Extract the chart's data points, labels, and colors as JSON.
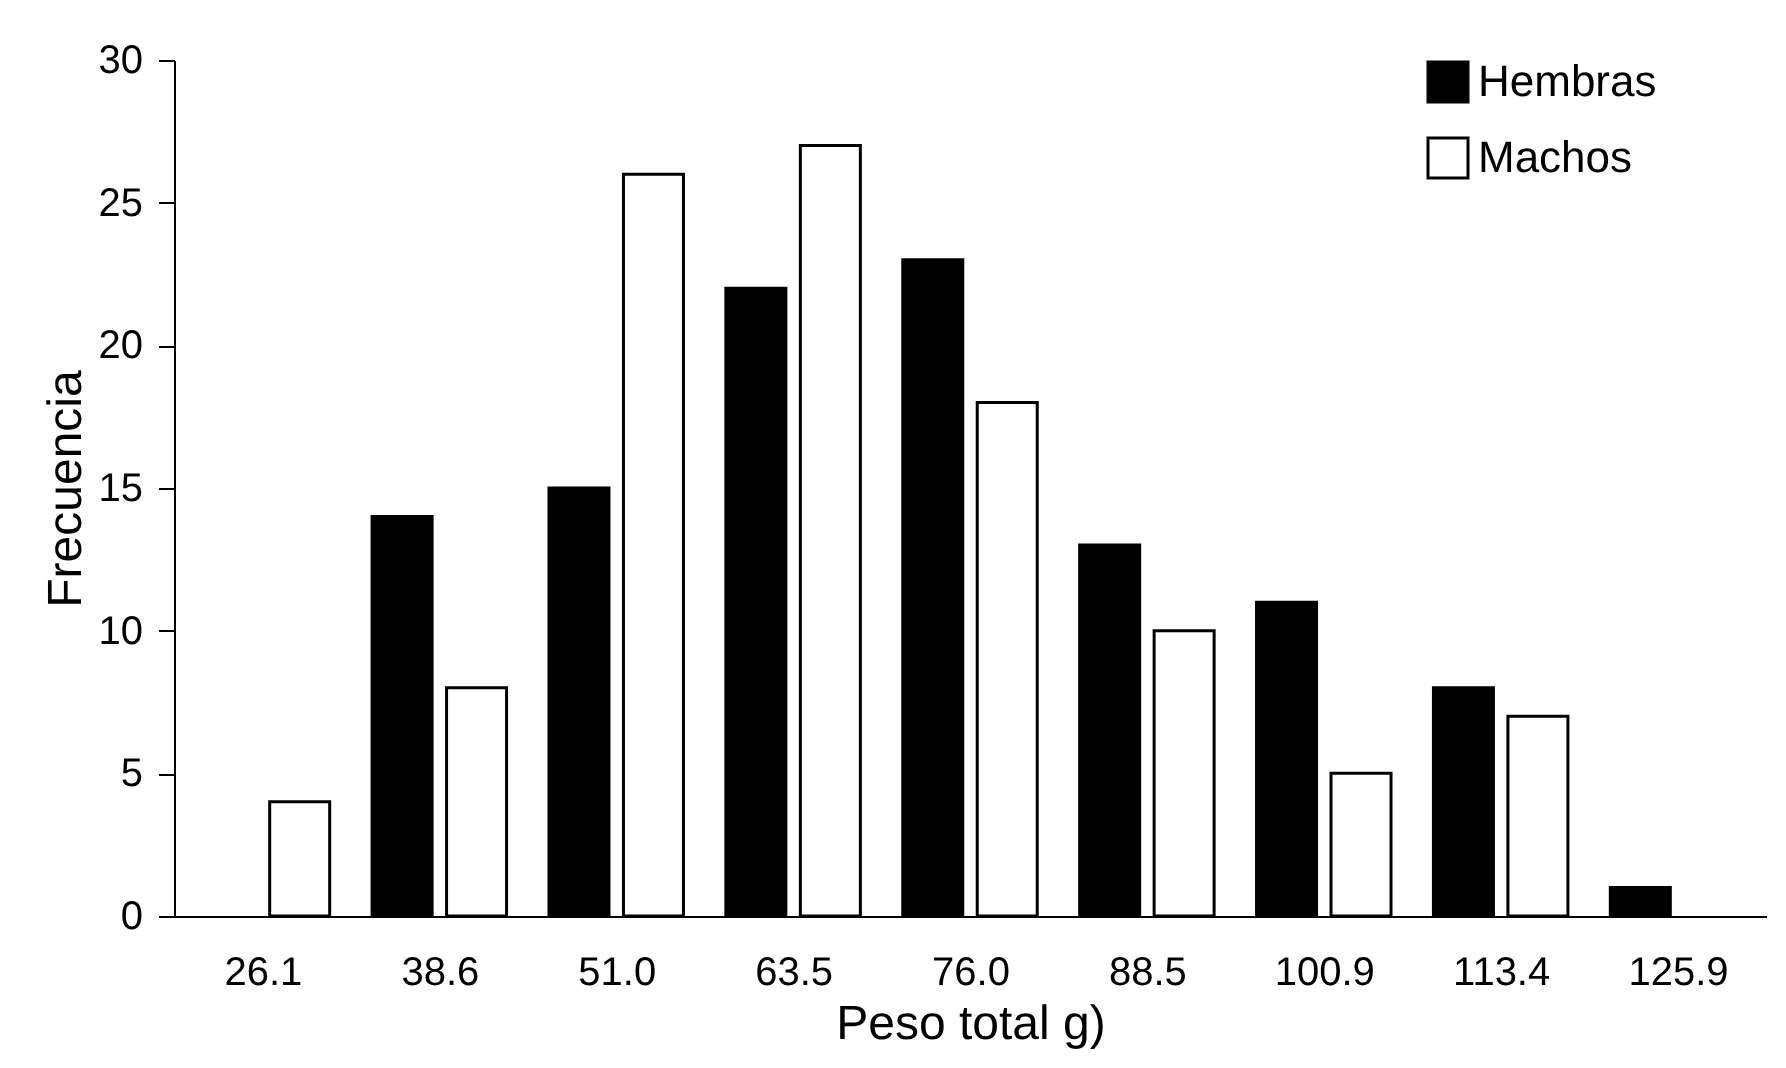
{
  "chart_data": {
    "type": "bar",
    "xlabel": "Peso total g)",
    "ylabel": "Frecuencia",
    "categories": [
      "26.1",
      "38.6",
      "51.0",
      "63.5",
      "76.0",
      "88.5",
      "100.9",
      "113.4",
      "125.9"
    ],
    "series": [
      {
        "name": "Hembras",
        "color": "#000000",
        "values": [
          0,
          14,
          15,
          22,
          23,
          13,
          11,
          8,
          1
        ]
      },
      {
        "name": "Machos",
        "color": "#ffffff",
        "values": [
          4,
          8,
          26,
          27,
          18,
          10,
          5,
          7,
          0
        ]
      }
    ],
    "ylim": [
      0,
      30
    ],
    "yticks": [
      0,
      5,
      10,
      15,
      20,
      25,
      30
    ],
    "legend": "right"
  }
}
